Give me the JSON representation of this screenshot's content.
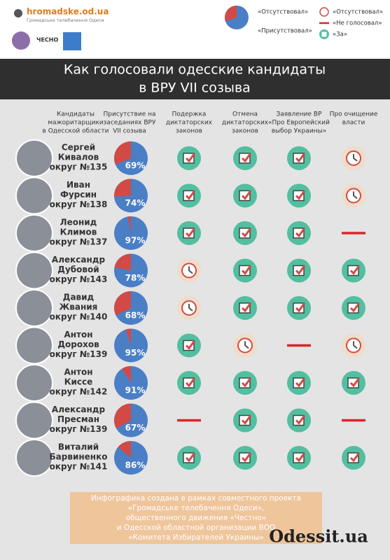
{
  "header": {
    "site": "hromadske.od.ua",
    "site_sub": "Громадське телебачення Одеси",
    "partner": "ЧЕСНО"
  },
  "legend": {
    "pie": [
      "«Отсутствовал»",
      "«Присутствовал»"
    ],
    "icons": [
      "«Отсутствовал»",
      "«Не голосовал»",
      "«За»"
    ]
  },
  "title": [
    "Как голосовали одесские кандидаты",
    "в ВРУ VII созыва"
  ],
  "columns": [
    [
      "Кандидаты",
      "мажоритарщики",
      "в Одесской области"
    ],
    [
      "Присутствие на",
      "заседаниях ВРУ",
      "VII созыва"
    ],
    [
      "Подержка",
      "диктаторских",
      "законов"
    ],
    [
      "Отмена",
      "диктаторских",
      "законов"
    ],
    [
      "Заявление ВР",
      "«Про Европейский",
      "выбор Украины»"
    ],
    [
      "Про очищение",
      "власти"
    ]
  ],
  "rows": [
    {
      "name": [
        "Сергей",
        "Кивалов"
      ],
      "district": "округ №135",
      "attendance": 69,
      "attendance_label": "69%",
      "votes": [
        "«За»",
        "«За»",
        "«За»",
        "«Отсутствовал»"
      ]
    },
    {
      "name": [
        "Иван",
        "Фурсин"
      ],
      "district": "округ №138",
      "attendance": 74,
      "attendance_label": "74%",
      "votes": [
        "«За»",
        "«За»",
        "«За»",
        "«Отсутствовал»"
      ]
    },
    {
      "name": [
        "Леонид",
        "Климов"
      ],
      "district": "округ №137",
      "attendance": 97,
      "attendance_label": "97%",
      "votes": [
        "«За»",
        "«За»",
        "«За»",
        "«Не голосовал»"
      ]
    },
    {
      "name": [
        "Александр",
        "Дубовой"
      ],
      "district": "округ №143",
      "attendance": 78,
      "attendance_label": "78%",
      "votes": [
        "«Отсутствовал»",
        "«За»",
        "«За»",
        "«За»"
      ]
    },
    {
      "name": [
        "Давид",
        "Жвания"
      ],
      "district": "округ №140",
      "attendance": 68,
      "attendance_label": "68%",
      "votes": [
        "«Отсутствовал»",
        "«За»",
        "«За»",
        "«За»"
      ]
    },
    {
      "name": [
        "Антон",
        "Дорохов"
      ],
      "district": "округ №139",
      "attendance": 95,
      "attendance_label": "95%",
      "votes": [
        "«За»",
        "«Отсутствовал»",
        "«Не голосовал»",
        "«Отсутствовал»"
      ]
    },
    {
      "name": [
        "Антон",
        "Киссе"
      ],
      "district": "округ №142",
      "attendance": 91,
      "attendance_label": "91%",
      "votes": [
        "«За»",
        "«За»",
        "«За»",
        "«За»"
      ]
    },
    {
      "name": [
        "Александр",
        "Пресман"
      ],
      "district": "округ №139",
      "attendance": 67,
      "attendance_label": "67%",
      "votes": [
        "«Не голосовал»",
        "«За»",
        "«За»",
        "«Не голосовал»"
      ]
    },
    {
      "name": [
        "Виталий",
        "Барвиненко"
      ],
      "district": "округ №141",
      "attendance": 86,
      "attendance_label": "86%",
      "votes": [
        "«За»",
        "«За»",
        "«За»",
        "«За»"
      ]
    }
  ],
  "footer": [
    "Инфографика создана в рамках совместного проекта",
    "«Громадське телебачення Одеси»,",
    "общественного движения «Честно»",
    "и Одесской областной организации ВОО",
    "«Комитета Избирателей Украины»"
  ],
  "brand": "Odessit.ua"
}
